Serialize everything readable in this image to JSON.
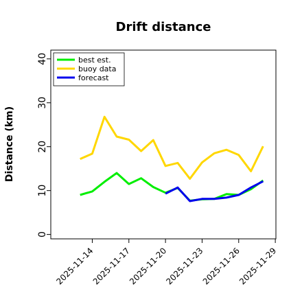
{
  "chart_data": {
    "type": "line",
    "title": "Drift distance",
    "xlabel": "",
    "ylabel": "Distance (km)",
    "x": [
      "2025-11-13",
      "2025-11-14",
      "2025-11-15",
      "2025-11-16",
      "2025-11-17",
      "2025-11-18",
      "2025-11-19",
      "2025-11-20",
      "2025-11-21",
      "2025-11-22",
      "2025-11-23",
      "2025-11-24",
      "2025-11-25",
      "2025-11-26",
      "2025-11-27",
      "2025-11-28"
    ],
    "xticks": [
      "2025-11-14",
      "2025-11-17",
      "2025-11-20",
      "2025-11-23",
      "2025-11-26",
      "2025-11-29"
    ],
    "highlight_tick": "2025-11-20",
    "highlight_color": "#228b22",
    "ylim": [
      -1,
      42
    ],
    "yticks": [
      0,
      10,
      20,
      30,
      40
    ],
    "legend": "top-left",
    "series": [
      {
        "name": "best est.",
        "color": "#00ee00",
        "values": [
          9.0,
          9.8,
          12.0,
          14.0,
          11.5,
          12.8,
          10.8,
          9.5,
          10.6,
          7.7,
          8.0,
          8.1,
          9.2,
          9.0,
          10.3,
          12.3
        ]
      },
      {
        "name": "buoy data",
        "color": "#ffd700",
        "values": [
          17.2,
          18.4,
          26.8,
          22.3,
          21.6,
          19.0,
          21.5,
          15.6,
          16.3,
          12.7,
          16.4,
          18.5,
          19.3,
          18.1,
          14.4,
          20.1
        ]
      },
      {
        "name": "forecast",
        "color": "#0000ee",
        "values": [
          null,
          null,
          null,
          null,
          null,
          null,
          null,
          9.3,
          10.7,
          7.6,
          8.1,
          8.1,
          8.4,
          9.0,
          10.7,
          12.1
        ]
      }
    ]
  }
}
